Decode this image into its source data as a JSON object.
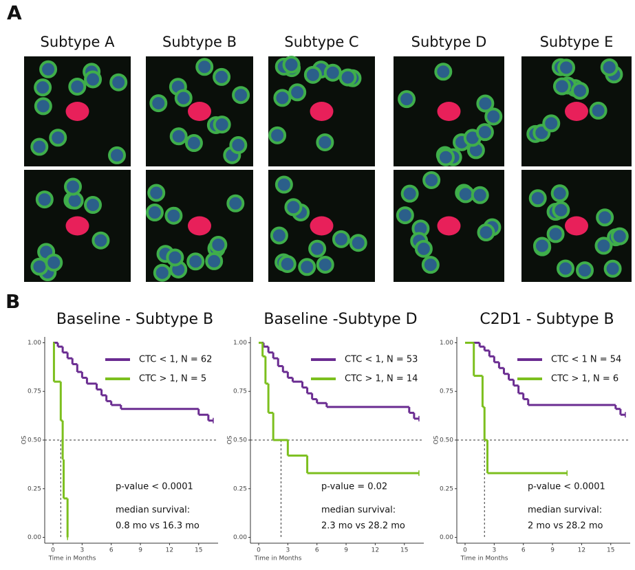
{
  "panel_a": {
    "label": "A",
    "subtypes": [
      "Subtype A",
      "Subtype B",
      "Subtype C",
      "Subtype D",
      "Subtype E"
    ]
  },
  "panel_b_label": "B",
  "chart_data": [
    {
      "type": "line",
      "step": true,
      "title": "Baseline - Subtype B",
      "ylabel": "OS",
      "xlabel": "Time in Months",
      "xlim": [
        -0.85,
        17
      ],
      "ylim": [
        -0.03,
        1.03
      ],
      "xticks": [
        0,
        3,
        6,
        9,
        12,
        15
      ],
      "yticks": [
        {
          "value": 0,
          "label": "0.00"
        },
        {
          "value": 0.25,
          "label": "0.25"
        },
        {
          "value": 0.5,
          "label": "0.50"
        },
        {
          "value": 0.75,
          "label": "0.75"
        },
        {
          "value": 1,
          "label": "1.00"
        }
      ],
      "reference_y": 0.5,
      "median_x": 0.8,
      "annotations": [
        "p-value < 0.0001",
        "median survival:",
        "0.8 mo vs 16.3 mo"
      ],
      "series": [
        {
          "name": "CTC < 1, N = 62",
          "color": "#6a2c91",
          "x": [
            0,
            0.5,
            1,
            1.5,
            2,
            2.5,
            3,
            3.5,
            4.5,
            5,
            5.5,
            6,
            7,
            15,
            16,
            16.5
          ],
          "values": [
            1,
            0.98,
            0.95,
            0.92,
            0.89,
            0.85,
            0.82,
            0.79,
            0.76,
            0.73,
            0.7,
            0.68,
            0.66,
            0.63,
            0.6,
            0.6
          ]
        },
        {
          "name": "CTC > 1, N = 5",
          "color": "#7cbf1e",
          "x": [
            0,
            0.1,
            0.8,
            1.0,
            1.1,
            1.5
          ],
          "values": [
            1,
            0.8,
            0.6,
            0.4,
            0.2,
            0
          ]
        }
      ]
    },
    {
      "type": "line",
      "step": true,
      "title": "Baseline -Subtype D",
      "ylabel": "OS",
      "xlabel": "Time in Months",
      "xlim": [
        -0.85,
        17
      ],
      "ylim": [
        -0.03,
        1.03
      ],
      "xticks": [
        0,
        3,
        6,
        9,
        12,
        15
      ],
      "yticks": [
        {
          "value": 0,
          "label": "0.00"
        },
        {
          "value": 0.25,
          "label": "0.25"
        },
        {
          "value": 0.5,
          "label": "0.50"
        },
        {
          "value": 0.75,
          "label": "0.75"
        },
        {
          "value": 1,
          "label": "1.00"
        }
      ],
      "reference_y": 0.5,
      "median_x": 2.3,
      "annotations": [
        "p-value = 0.02",
        "median survival:",
        "2.3 mo vs 28.2 mo"
      ],
      "series": [
        {
          "name": "CTC < 1, N = 53",
          "color": "#6a2c91",
          "x": [
            0,
            0.5,
            1,
            1.5,
            2,
            2.5,
            3,
            3.5,
            4.5,
            5,
            5.5,
            6,
            7,
            15.5,
            16,
            16.5
          ],
          "values": [
            1,
            0.98,
            0.95,
            0.92,
            0.88,
            0.85,
            0.82,
            0.8,
            0.77,
            0.74,
            0.71,
            0.69,
            0.67,
            0.64,
            0.61,
            0.61
          ]
        },
        {
          "name": "CTC > 1, N = 14",
          "color": "#7cbf1e",
          "x": [
            0,
            0.4,
            0.7,
            1.0,
            1.5,
            3.0,
            5.0,
            16.5
          ],
          "values": [
            1,
            0.93,
            0.79,
            0.64,
            0.5,
            0.42,
            0.33,
            0.33
          ]
        }
      ]
    },
    {
      "type": "line",
      "step": true,
      "title": "C2D1 - Subtype B",
      "ylabel": "OS",
      "xlabel": "Time in Months",
      "xlim": [
        -0.85,
        17
      ],
      "ylim": [
        -0.03,
        1.03
      ],
      "xticks": [
        0,
        3,
        6,
        9,
        12,
        15
      ],
      "yticks": [
        {
          "value": 0,
          "label": "0.00"
        },
        {
          "value": 0.25,
          "label": "0.25"
        },
        {
          "value": 0.5,
          "label": "0.50"
        },
        {
          "value": 0.75,
          "label": "0.75"
        },
        {
          "value": 1,
          "label": "1.00"
        }
      ],
      "reference_y": 0.5,
      "median_x": 2,
      "annotations": [
        "p-value < 0.0001",
        "median survival:",
        "2 mo vs 28.2 mo"
      ],
      "series": [
        {
          "name": "CTC < 1 N = 54",
          "color": "#6a2c91",
          "x": [
            0,
            1.5,
            2,
            2.5,
            3,
            3.5,
            4,
            4.5,
            5,
            5.5,
            6,
            6.5,
            15.5,
            16,
            16.5
          ],
          "values": [
            1,
            0.98,
            0.96,
            0.93,
            0.9,
            0.87,
            0.84,
            0.81,
            0.78,
            0.74,
            0.71,
            0.68,
            0.66,
            0.63,
            0.63
          ]
        },
        {
          "name": "CTC > 1, N = 6",
          "color": "#7cbf1e",
          "x": [
            0,
            0.9,
            1.8,
            2.0,
            2.3,
            10.5
          ],
          "values": [
            1,
            0.83,
            0.67,
            0.5,
            0.33,
            0.33
          ]
        }
      ]
    }
  ]
}
